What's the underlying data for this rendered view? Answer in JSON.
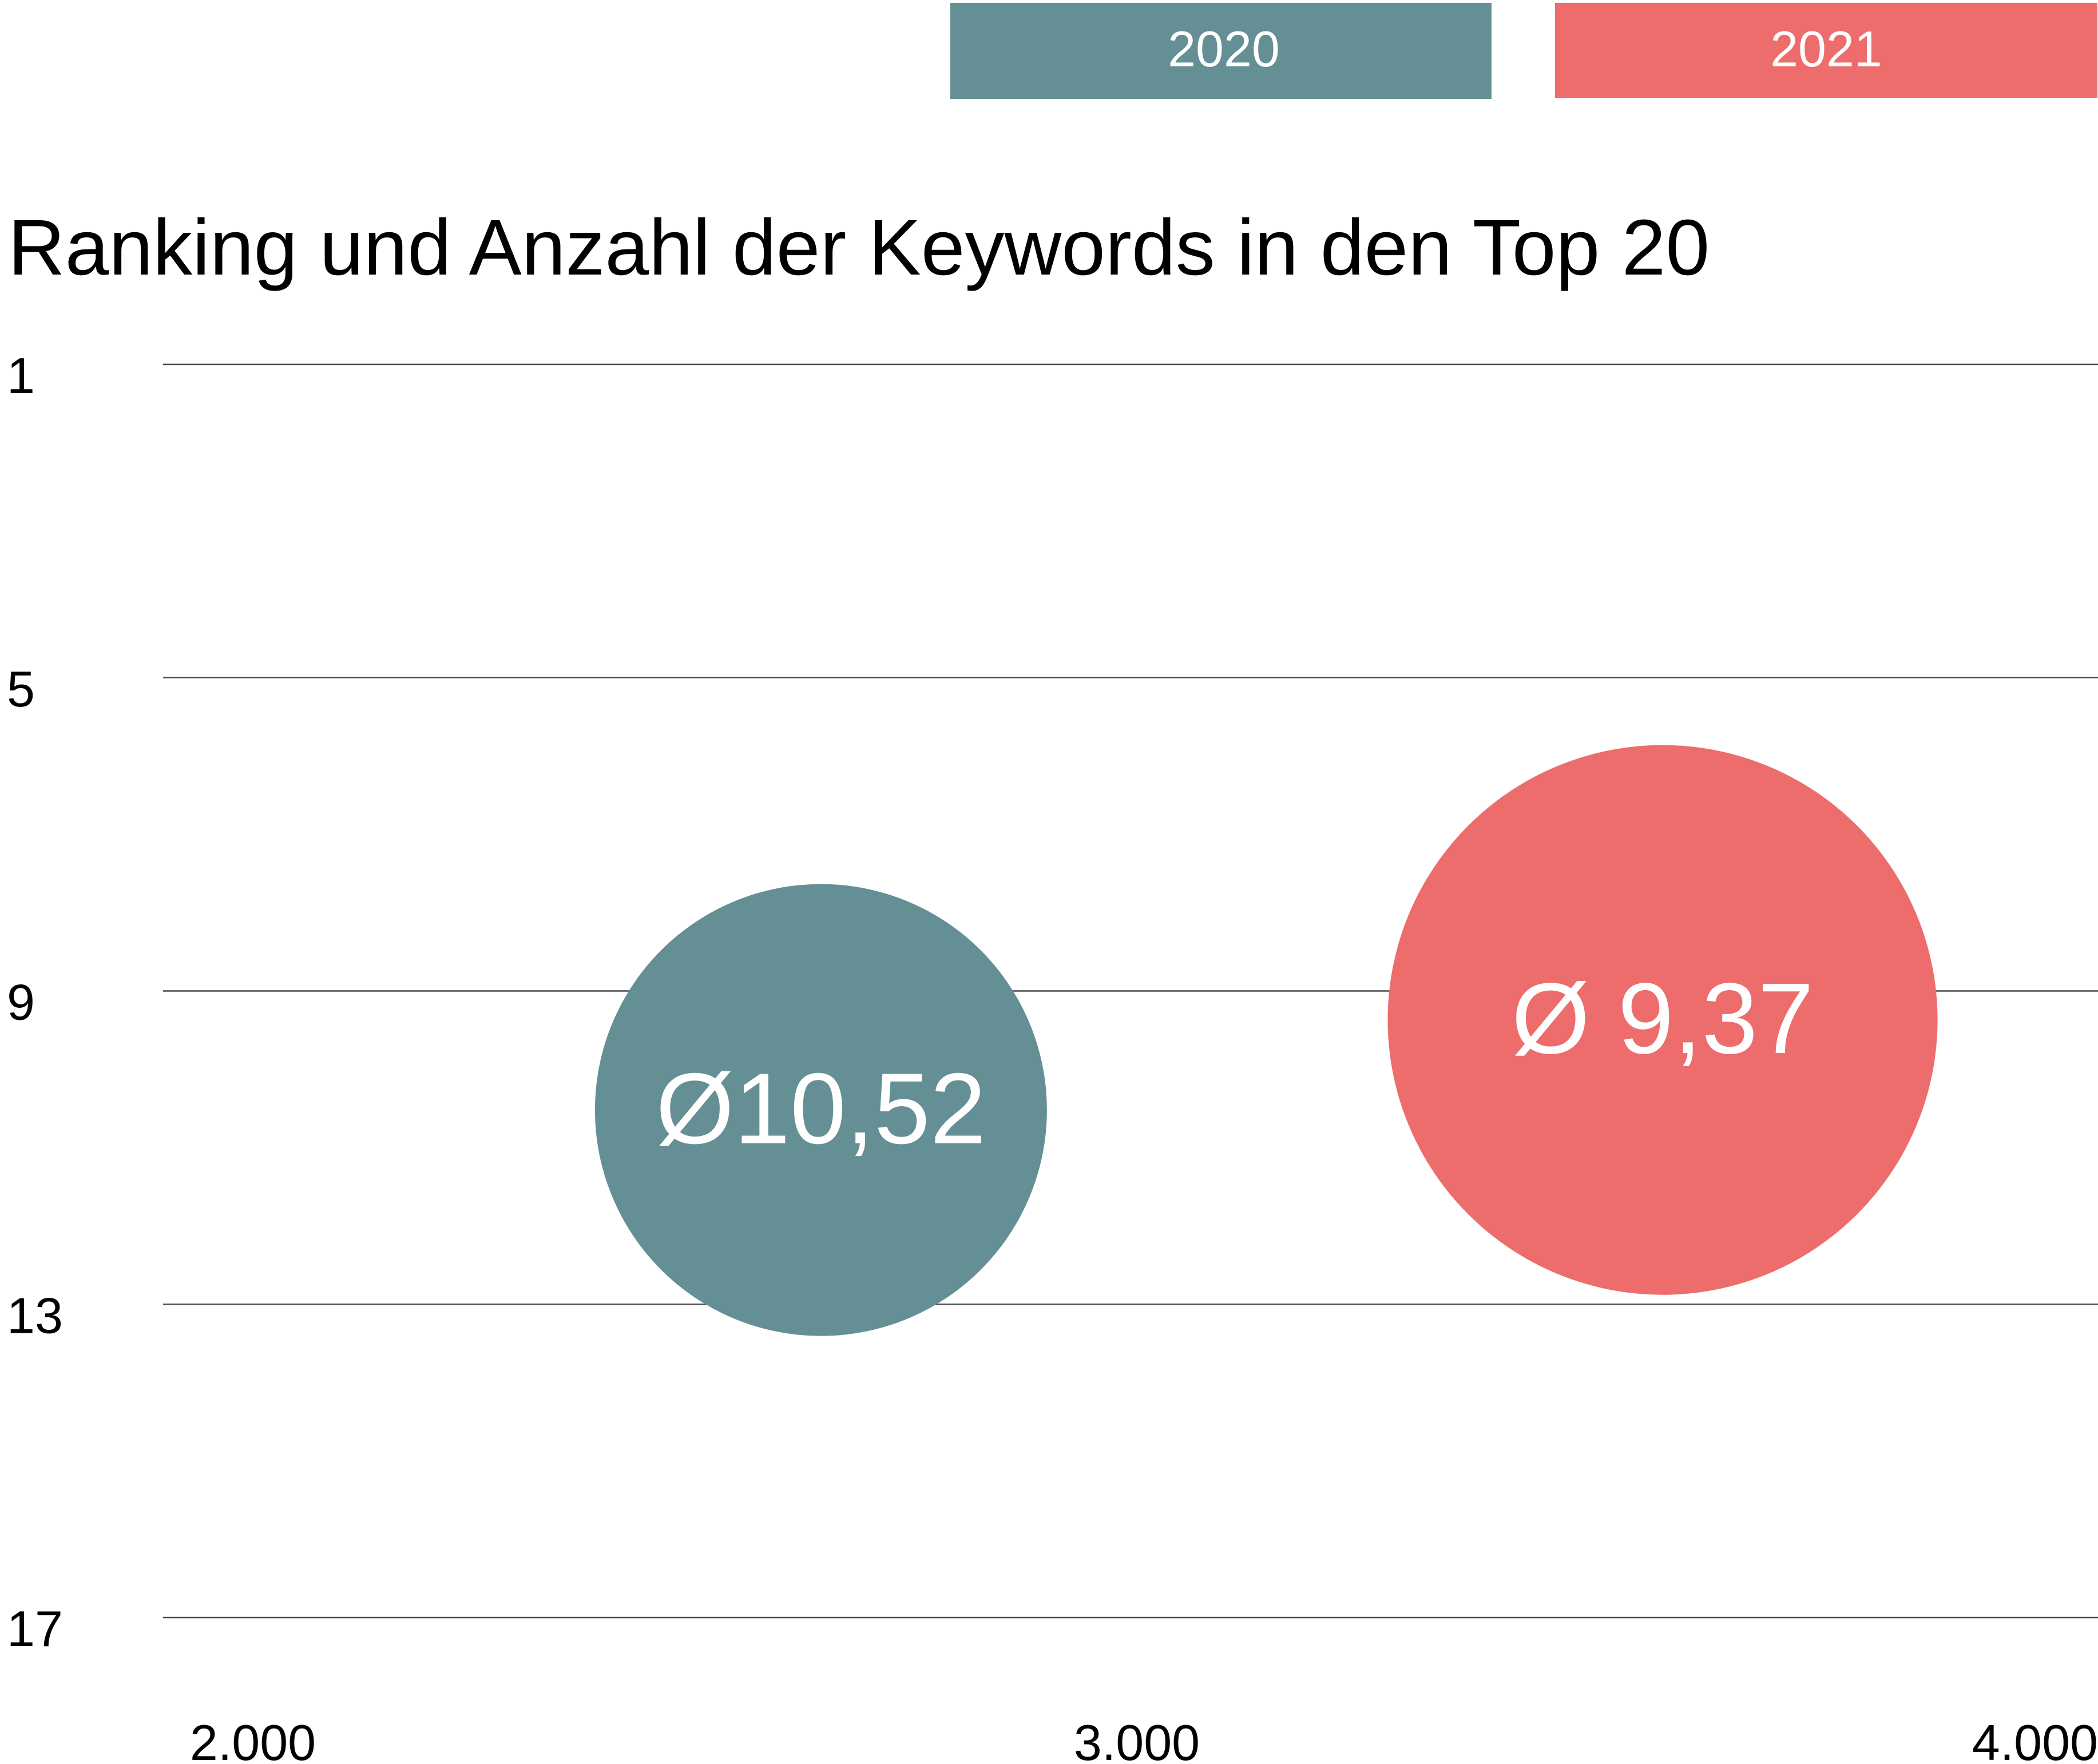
{
  "chart_data": {
    "type": "bubble",
    "title": "Ranking und Anzahl der Keywords in den Top 20",
    "xlabel": "",
    "ylabel": "",
    "xlim": [
      2000,
      4000
    ],
    "ylim": [
      1,
      17
    ],
    "y_reversed": true,
    "x_ticks": [
      2000,
      3000,
      4000
    ],
    "x_tick_labels": [
      "2.000",
      "3.000",
      "4.000"
    ],
    "y_ticks": [
      1,
      5,
      9,
      13,
      17
    ],
    "y_tick_labels": [
      "1",
      "5",
      "9",
      "13",
      "17"
    ],
    "grid": "horizontal",
    "legend_position": "top-right",
    "series": [
      {
        "name": "2020",
        "color": "#648f95",
        "x": 2680,
        "y": 10.52,
        "size": 1,
        "label": "Ø10,52"
      },
      {
        "name": "2021",
        "color": "#ec6d6c",
        "x": 3550,
        "y": 9.37,
        "size": 1.48,
        "label": "Ø 9,37"
      }
    ]
  }
}
